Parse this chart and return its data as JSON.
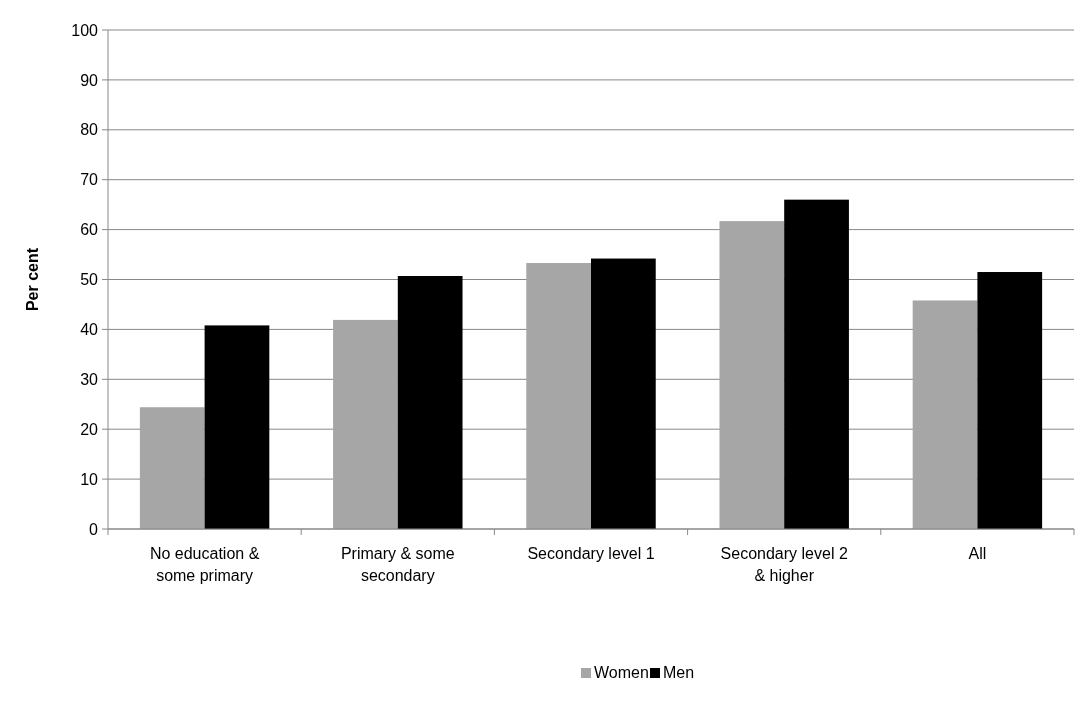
{
  "chart_data": {
    "type": "bar",
    "ylabel": "Per cent",
    "categories": [
      "No education & some primary",
      "Primary & some secondary",
      "Secondary level 1",
      "Secondary level 2 & higher",
      "All"
    ],
    "series": [
      {
        "name": "Women",
        "color": "#a6a6a6",
        "values": [
          24.4,
          41.9,
          53.3,
          61.7,
          45.8
        ]
      },
      {
        "name": "Men",
        "color": "#000000",
        "values": [
          40.8,
          50.7,
          54.2,
          66.0,
          51.5
        ]
      }
    ],
    "ylim": [
      0,
      100
    ],
    "yticks": [
      0,
      10,
      20,
      30,
      40,
      50,
      60,
      70,
      80,
      90,
      100
    ],
    "grid": "y",
    "legend": "bottom"
  }
}
